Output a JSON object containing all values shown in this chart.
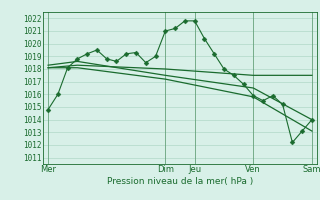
{
  "background_color": "#d8f0e8",
  "grid_color": "#b0d8c8",
  "line_color": "#1a6b2e",
  "ylabel_ticks": [
    1011,
    1012,
    1013,
    1014,
    1015,
    1016,
    1017,
    1018,
    1019,
    1020,
    1021,
    1022
  ],
  "ylim": [
    1010.5,
    1022.5
  ],
  "x_tick_labels": [
    "Mer",
    "Dim",
    "Jeu",
    "Ven",
    "Sam"
  ],
  "x_tick_positions": [
    0,
    12,
    15,
    21,
    27
  ],
  "xlabel": "Pression niveau de la mer( hPa )",
  "series1": {
    "x": [
      0,
      1,
      2,
      3,
      4,
      5,
      6,
      7,
      8,
      9,
      10,
      11,
      12,
      13,
      14,
      15,
      16,
      17,
      18,
      19,
      20,
      21,
      22,
      23,
      24,
      25,
      26,
      27
    ],
    "y": [
      1014.8,
      1016.0,
      1018.1,
      1018.8,
      1019.2,
      1019.5,
      1018.8,
      1018.6,
      1019.2,
      1019.3,
      1018.5,
      1019.0,
      1021.0,
      1021.2,
      1021.8,
      1021.8,
      1020.4,
      1019.2,
      1018.0,
      1017.5,
      1016.8,
      1015.9,
      1015.5,
      1015.9,
      1015.2,
      1012.2,
      1013.1,
      1014.0
    ]
  },
  "series2": {
    "x": [
      0,
      3,
      12,
      21,
      27
    ],
    "y": [
      1018.1,
      1018.3,
      1018.0,
      1017.5,
      1017.5
    ]
  },
  "series3": {
    "x": [
      0,
      3,
      12,
      21,
      27
    ],
    "y": [
      1018.3,
      1018.6,
      1017.5,
      1016.5,
      1014.0
    ]
  },
  "series4": {
    "x": [
      0,
      3,
      12,
      21,
      27
    ],
    "y": [
      1018.1,
      1018.1,
      1017.2,
      1015.8,
      1013.1
    ]
  },
  "xlim": [
    -0.5,
    27.5
  ],
  "figsize": [
    3.2,
    2.0
  ],
  "dpi": 100
}
